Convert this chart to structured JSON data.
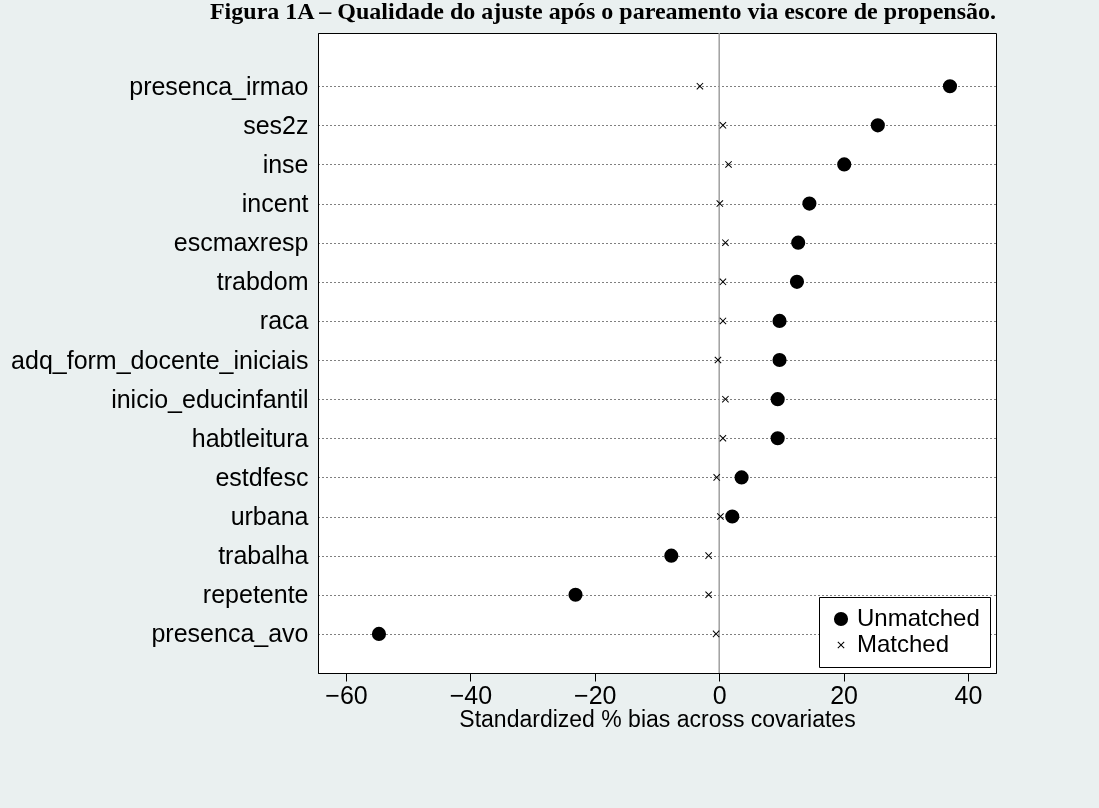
{
  "chart_data": {
    "type": "scatter",
    "title": "Figura 1A – Qualidade do ajuste após o pareamento via escore de propensão.",
    "xlabel": "Standardized % bias across covariates",
    "categories": [
      "presenca_irmao",
      "ses2z",
      "inse",
      "incent",
      "escmaxresp",
      "trabdom",
      "raca",
      "adq_form_docente_iniciais",
      "inicio_educinfantil",
      "habtleitura",
      "estdfesc",
      "urbana",
      "trabalha",
      "repetente",
      "presenca_avo"
    ],
    "orientation": "horizontal",
    "series": [
      {
        "name": "Unmatched",
        "color": "#000000",
        "marker": "circle",
        "values": [
          37.1,
          25.5,
          20.1,
          14.5,
          12.7,
          12.5,
          9.7,
          9.7,
          9.4,
          9.4,
          3.6,
          2.1,
          -7.7,
          -23.1,
          -54.7
        ]
      },
      {
        "name": "Matched",
        "color": "#000000",
        "marker": "cross",
        "values": [
          -3.1,
          0.6,
          1.5,
          0.1,
          1.0,
          0.6,
          0.6,
          -0.2,
          1.0,
          0.6,
          -0.4,
          0.2,
          -1.7,
          -1.7,
          -0.5
        ]
      }
    ],
    "xlim": [
      -64.5,
      44.5
    ],
    "xticks": [
      -60,
      -40,
      -20,
      0,
      20,
      40
    ],
    "ref_lines": [
      {
        "axis": "x",
        "value": 0,
        "color": "#a0a0a0"
      }
    ],
    "grid": "y",
    "line_style": "dotted",
    "legend": "bottom right"
  }
}
